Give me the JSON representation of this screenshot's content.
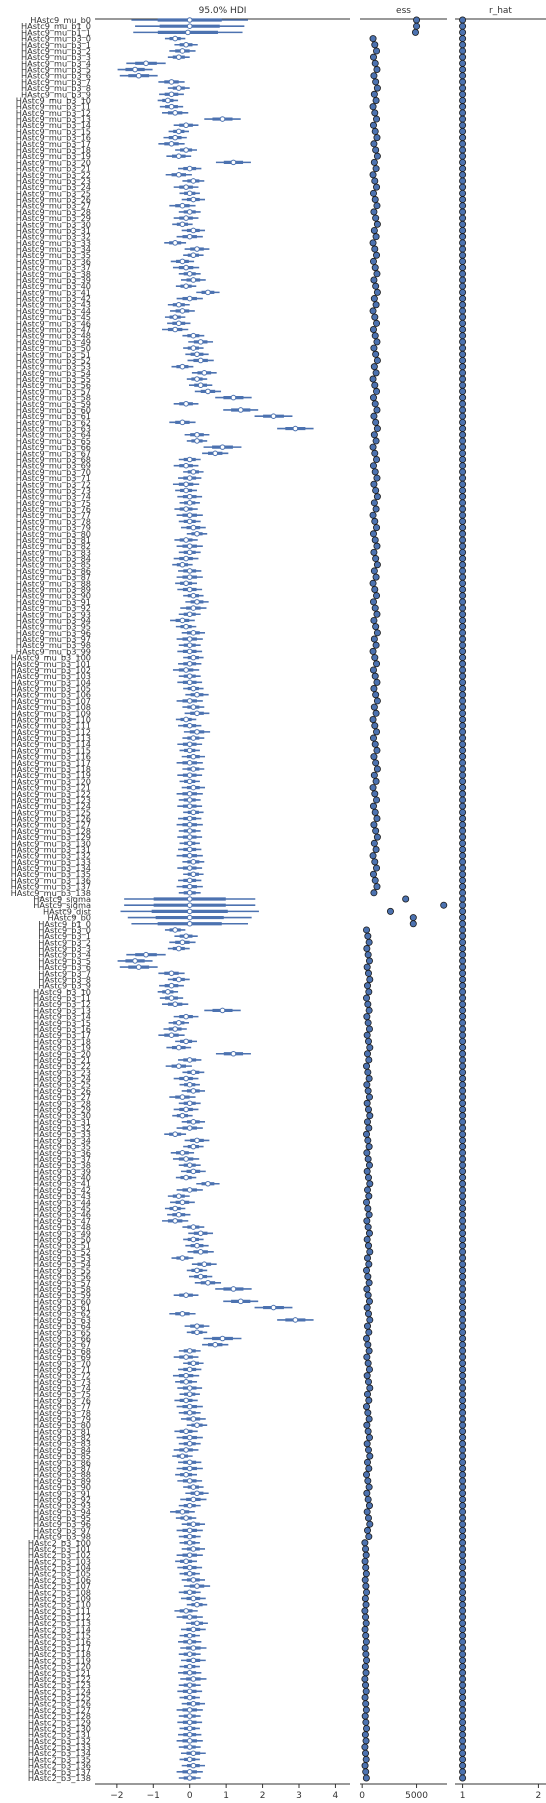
{
  "chart_data": {
    "type": "forest",
    "panels": [
      {
        "title": "95.0% HDI",
        "xlim": [
          -2.6,
          4.4
        ],
        "ticks": [
          -2,
          -1,
          0,
          1,
          2,
          3,
          4
        ]
      },
      {
        "title": "ess",
        "xlim": [
          -200,
          7800
        ],
        "ticks": [
          0,
          5000
        ]
      },
      {
        "title": "r_hat",
        "xlim": [
          0.9,
          2.1
        ],
        "ticks": [
          1,
          2
        ]
      }
    ],
    "ess_tick_labels": [
      "0",
      "5000"
    ],
    "rhat_tick_labels": [
      "1",
      "2"
    ],
    "hdi_tick_labels": [
      "−2",
      "−1",
      "0",
      "1",
      "2",
      "3",
      "4"
    ],
    "groups": [
      {
        "prefix": "HAstc9_mu_",
        "items": [
          {
            "name": "b0",
            "mean": 0.0,
            "half": 1.6,
            "ess": 5000
          },
          {
            "name": "b1_0",
            "mean": 0.0,
            "half": 1.5,
            "ess": 5000
          },
          {
            "name": "b1_1",
            "mean": -0.05,
            "half": 1.5,
            "ess": 4900
          }
        ]
      },
      {
        "prefix": "HAstc9_mu_b3_",
        "count": 139,
        "essBase": 1000,
        "essVar": 400
      },
      {
        "prefix": "HAstc9_",
        "items": [
          {
            "name": "sigma",
            "mean": 0.0,
            "half": 1.8,
            "ess": 4000
          },
          {
            "name": "sigma",
            "mean": 0.0,
            "half": 1.8,
            "ess": 7500
          },
          {
            "name": "dist",
            "mean": 0.0,
            "half": 1.9,
            "ess": 2600
          },
          {
            "name": "b0",
            "mean": 0.0,
            "half": 1.7,
            "ess": 4700
          }
        ]
      },
      {
        "prefix": "HAstc9_",
        "items": [
          {
            "name": "b1_0",
            "mean": 0.0,
            "half": 1.6,
            "ess": 4700
          }
        ]
      },
      {
        "prefix": "HAstc9_b3_",
        "count": 99,
        "essBase": 400,
        "essVar": 300
      },
      {
        "prefix": "HAstc2_b3_",
        "count": 39,
        "start": 100,
        "essBase": 250,
        "essVar": 150
      }
    ],
    "b3_means": [
      -0.4,
      -0.1,
      -0.2,
      -0.3,
      -1.2,
      -1.5,
      -1.4,
      -0.5,
      -0.3,
      -0.5,
      -0.6,
      -0.5,
      -0.4,
      0.9,
      -0.1,
      -0.3,
      -0.4,
      -0.5,
      -0.1,
      -0.3,
      1.2,
      0.0,
      -0.3,
      0.1,
      -0.1,
      0.0,
      0.1,
      -0.2,
      0.0,
      -0.1,
      -0.2,
      0.1,
      0.0,
      -0.4,
      0.2,
      0.1,
      -0.2,
      -0.1,
      0.0,
      0.1,
      -0.1,
      0.5,
      0.0,
      -0.3,
      -0.2,
      -0.4,
      -0.3,
      -0.4,
      0.1,
      0.3,
      0.1,
      0.2,
      0.3,
      -0.2,
      0.4,
      0.2,
      0.3,
      0.5,
      1.2,
      -0.1,
      1.4,
      2.3,
      -0.2,
      2.9,
      0.2,
      0.2,
      0.9,
      0.7,
      0.0,
      -0.1,
      0.1,
      0.0,
      -0.1,
      -0.1,
      0.0,
      0.0,
      -0.1,
      0.0,
      0.0,
      0.1,
      0.2,
      -0.1,
      0.0,
      0.0,
      -0.1,
      -0.2,
      0.0,
      0.0,
      -0.1,
      0.0,
      0.1,
      0.2,
      0.1,
      0.0,
      -0.2,
      -0.1,
      0.1,
      0.0,
      0.0,
      0.0,
      0.1,
      0.0,
      -0.1,
      0.0,
      0.0,
      0.1,
      0.2,
      0.0,
      0.1,
      0.2,
      -0.1,
      0.0,
      0.2,
      0.1,
      0.0,
      0.0,
      0.1,
      0.0,
      0.1,
      0.0,
      0.0,
      0.1,
      0.0,
      0.0,
      0.0,
      0.1,
      0.0,
      0.0,
      0.0,
      0.0,
      0.0,
      0.0,
      0.0,
      0.1,
      0.0,
      0.1,
      0.0,
      0.0,
      0.0
    ]
  }
}
